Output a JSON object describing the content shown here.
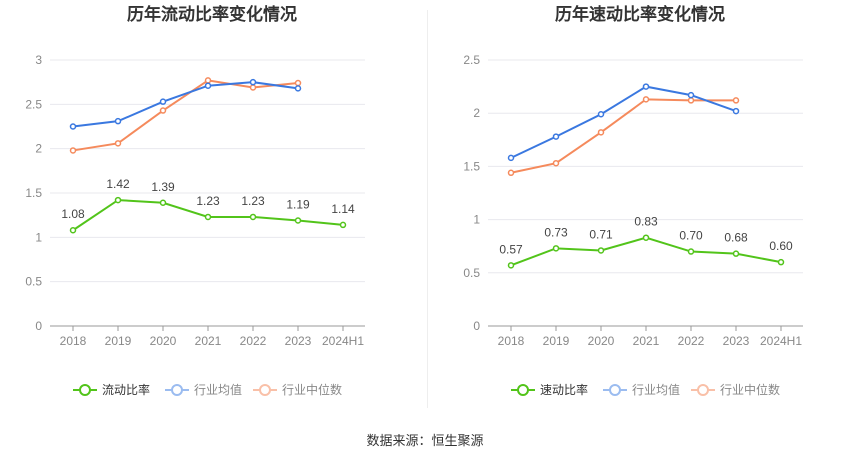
{
  "source": "数据来源：恒生聚源",
  "chart_data": [
    {
      "type": "line",
      "title": "历年流动比率变化情况",
      "categories": [
        "2018",
        "2019",
        "2020",
        "2021",
        "2022",
        "2023",
        "2024H1"
      ],
      "ylim": [
        0,
        3
      ],
      "yticks": [
        "0",
        "0.5",
        "1",
        "1.5",
        "2",
        "2.5",
        "3"
      ],
      "grid": true,
      "legend": "bottom",
      "series": [
        {
          "name": "流动比率",
          "color": "#52c41a",
          "labels": [
            "1.08",
            "1.42",
            "1.39",
            "1.23",
            "1.23",
            "1.19",
            "1.14"
          ],
          "values": [
            1.08,
            1.42,
            1.39,
            1.23,
            1.23,
            1.19,
            1.14
          ]
        },
        {
          "name": "行业均值",
          "color": "#3a78e0",
          "values": [
            2.25,
            2.31,
            2.53,
            2.71,
            2.75,
            2.68,
            null
          ]
        },
        {
          "name": "行业中位数",
          "color": "#f58a5c",
          "values": [
            1.98,
            2.06,
            2.43,
            2.77,
            2.69,
            2.74,
            null
          ]
        }
      ]
    },
    {
      "type": "line",
      "title": "历年速动比率变化情况",
      "categories": [
        "2018",
        "2019",
        "2020",
        "2021",
        "2022",
        "2023",
        "2024H1"
      ],
      "ylim": [
        0,
        2.5
      ],
      "yticks": [
        "0",
        "0.5",
        "1",
        "1.5",
        "2",
        "2.5"
      ],
      "grid": true,
      "legend": "bottom",
      "series": [
        {
          "name": "速动比率",
          "color": "#52c41a",
          "labels": [
            "0.57",
            "0.73",
            "0.71",
            "0.83",
            "0.70",
            "0.68",
            "0.60"
          ],
          "values": [
            0.57,
            0.73,
            0.71,
            0.83,
            0.7,
            0.68,
            0.6
          ]
        },
        {
          "name": "行业均值",
          "color": "#3a78e0",
          "values": [
            1.58,
            1.78,
            1.99,
            2.25,
            2.17,
            2.02,
            null
          ]
        },
        {
          "name": "行业中位数",
          "color": "#f58a5c",
          "values": [
            1.44,
            1.53,
            1.82,
            2.13,
            2.12,
            2.12,
            null
          ]
        }
      ]
    }
  ]
}
